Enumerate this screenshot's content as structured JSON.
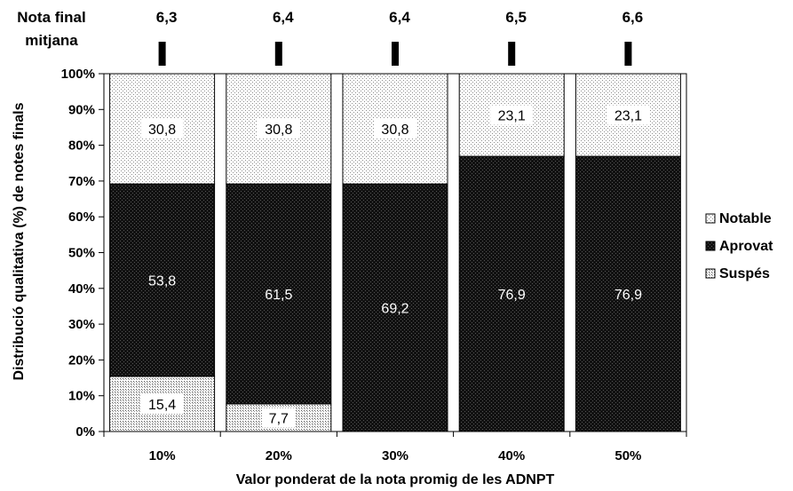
{
  "chart_data": {
    "type": "bar",
    "stacked": true,
    "percent_stacked": true,
    "categories": [
      "10%",
      "20%",
      "30%",
      "40%",
      "50%"
    ],
    "series": [
      {
        "name": "Suspés",
        "values": [
          15.4,
          7.7,
          0,
          0,
          0
        ],
        "labels": [
          "15,4",
          "7,7",
          "",
          "",
          ""
        ],
        "fill": "sparse-dots"
      },
      {
        "name": "Aprovat",
        "values": [
          53.8,
          61.5,
          69.2,
          76.9,
          76.9
        ],
        "labels": [
          "53,8",
          "61,5",
          "69,2",
          "76,9",
          "76,9"
        ],
        "fill": "dense-dark"
      },
      {
        "name": "Notable",
        "values": [
          30.8,
          30.8,
          30.8,
          23.1,
          23.1
        ],
        "labels": [
          "30,8",
          "30,8",
          "30,8",
          "23,1",
          "23,1"
        ],
        "fill": "light-dots"
      }
    ],
    "legend_order": [
      "Notable",
      "Aprovat",
      "Suspés"
    ],
    "legend_position": "right",
    "xlabel": "Valor ponderat de la nota promig de les ADNPT",
    "ylabel": "Distribució qualitativa (%) de notes finals",
    "ylim": [
      0,
      100
    ],
    "y_ticks": [
      "0%",
      "10%",
      "20%",
      "30%",
      "40%",
      "50%",
      "60%",
      "70%",
      "80%",
      "90%",
      "100%"
    ],
    "top_annotation": {
      "title_line1": "Nota final",
      "title_line2": "mitjana",
      "values": [
        "6,3",
        "6,4",
        "6,4",
        "6,5",
        "6,6"
      ]
    },
    "colors": {
      "background": "#ffffff",
      "border": "#000000",
      "text": "#000000",
      "dark_fill": "#1a1a1a"
    }
  }
}
